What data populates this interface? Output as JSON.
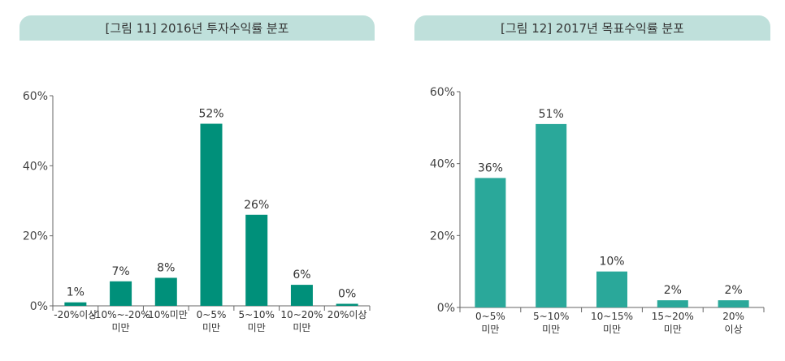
{
  "colors": {
    "bar_1": "#00907a",
    "bar_2": "#2aa89a",
    "title_bg": "#bfe0db",
    "axis": "#666666"
  },
  "chart_data": [
    {
      "type": "bar",
      "title": "[그림 11] 2016년 투자수익률 분포",
      "categories": [
        [
          "-20%이상"
        ],
        [
          "-10%~-20%",
          "미만"
        ],
        [
          "-10%미만"
        ],
        [
          "0~5%",
          "미만"
        ],
        [
          "5~10%",
          "미만"
        ],
        [
          "10~20%",
          "미만"
        ],
        [
          "20%이상"
        ]
      ],
      "values": [
        1,
        7,
        8,
        52,
        26,
        6,
        0
      ],
      "data_labels": [
        "1%",
        "7%",
        "8%",
        "52%",
        "26%",
        "6%",
        "0%"
      ],
      "ylim": [
        0,
        60
      ],
      "yticks": [
        "0%",
        "20%",
        "40%",
        "60%"
      ],
      "grid": false
    },
    {
      "type": "bar",
      "title": "[그림 12] 2017년 목표수익률 분포",
      "categories": [
        [
          "0~5%",
          "미만"
        ],
        [
          "5~10%",
          "미만"
        ],
        [
          "10~15%",
          "미만"
        ],
        [
          "15~20%",
          "미만"
        ],
        [
          "20%",
          "이상"
        ]
      ],
      "values": [
        36,
        51,
        10,
        2,
        2
      ],
      "data_labels": [
        "36%",
        "51%",
        "10%",
        "2%",
        "2%"
      ],
      "ylim": [
        0,
        60
      ],
      "yticks": [
        "0%",
        "20%",
        "40%",
        "60%"
      ],
      "grid": false
    }
  ]
}
